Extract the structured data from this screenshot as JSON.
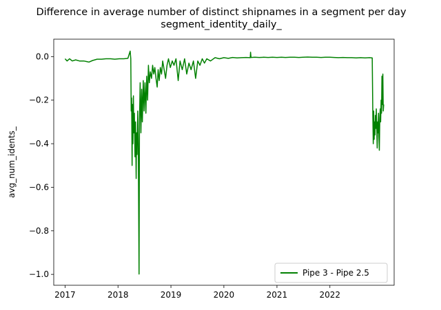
{
  "chart_data": {
    "type": "line",
    "title": [
      "Difference in average number of distinct shipnames in a segment per day",
      "segment_identity_daily_"
    ],
    "xlabel": "",
    "ylabel": "avg_num_idents_",
    "x_ticks": [
      "2017",
      "2018",
      "2019",
      "2020",
      "2021",
      "2022"
    ],
    "y_ticks": [
      "0.0",
      "−0.2",
      "−0.4",
      "−0.6",
      "−0.8",
      "−1.0"
    ],
    "xlim": [
      "2016-10-15",
      "2023-03-20"
    ],
    "ylim": [
      -1.05,
      0.08
    ],
    "grid": false,
    "legend_position": "lower-right",
    "series": [
      {
        "name": "Pipe 3 - Pipe 2.5",
        "color": "#008000",
        "points": [
          [
            "2017-01-01",
            -0.01
          ],
          [
            "2017-01-15",
            -0.02
          ],
          [
            "2017-02-01",
            -0.01
          ],
          [
            "2017-02-20",
            -0.02
          ],
          [
            "2017-03-15",
            -0.015
          ],
          [
            "2017-04-10",
            -0.02
          ],
          [
            "2017-05-10",
            -0.02
          ],
          [
            "2017-06-15",
            -0.025
          ],
          [
            "2017-07-10",
            -0.018
          ],
          [
            "2017-08-10",
            -0.012
          ],
          [
            "2017-09-10",
            -0.012
          ],
          [
            "2017-10-10",
            -0.01
          ],
          [
            "2017-11-10",
            -0.01
          ],
          [
            "2017-12-10",
            -0.012
          ],
          [
            "2018-01-10",
            -0.01
          ],
          [
            "2018-02-10",
            -0.01
          ],
          [
            "2018-03-10",
            -0.008
          ],
          [
            "2018-03-26",
            0.025
          ],
          [
            "2018-03-30",
            -0.01
          ],
          [
            "2018-04-02",
            -0.25
          ],
          [
            "2018-04-05",
            -0.19
          ],
          [
            "2018-04-08",
            -0.5
          ],
          [
            "2018-04-11",
            -0.22
          ],
          [
            "2018-04-14",
            -0.4
          ],
          [
            "2018-04-17",
            -0.18
          ],
          [
            "2018-04-20",
            -0.35
          ],
          [
            "2018-04-24",
            -0.26
          ],
          [
            "2018-04-28",
            -0.46
          ],
          [
            "2018-05-02",
            -0.3
          ],
          [
            "2018-05-06",
            -0.56
          ],
          [
            "2018-05-09",
            -0.35
          ],
          [
            "2018-05-13",
            -0.45
          ],
          [
            "2018-05-17",
            -0.25
          ],
          [
            "2018-05-21",
            -0.4
          ],
          [
            "2018-05-26",
            -0.999
          ],
          [
            "2018-05-29",
            -0.3
          ],
          [
            "2018-06-03",
            -0.12
          ],
          [
            "2018-06-08",
            -0.35
          ],
          [
            "2018-06-13",
            -0.15
          ],
          [
            "2018-06-18",
            -0.3
          ],
          [
            "2018-06-24",
            -0.11
          ],
          [
            "2018-06-30",
            -0.25
          ],
          [
            "2018-07-06",
            -0.12
          ],
          [
            "2018-07-12",
            -0.26
          ],
          [
            "2018-07-18",
            -0.09
          ],
          [
            "2018-07-24",
            -0.2
          ],
          [
            "2018-07-30",
            -0.04
          ],
          [
            "2018-08-05",
            -0.12
          ],
          [
            "2018-08-12",
            -0.07
          ],
          [
            "2018-08-20",
            -0.1
          ],
          [
            "2018-08-28",
            -0.04
          ],
          [
            "2018-09-05",
            -0.08
          ],
          [
            "2018-09-12",
            -0.05
          ],
          [
            "2018-09-20",
            -0.1
          ],
          [
            "2018-09-28",
            -0.14
          ],
          [
            "2018-10-05",
            -0.06
          ],
          [
            "2018-10-12",
            -0.11
          ],
          [
            "2018-10-20",
            -0.05
          ],
          [
            "2018-10-28",
            -0.08
          ],
          [
            "2018-11-05",
            -0.02
          ],
          [
            "2018-11-15",
            -0.06
          ],
          [
            "2018-11-25",
            -0.1
          ],
          [
            "2018-12-05",
            -0.04
          ],
          [
            "2018-12-15",
            -0.01
          ],
          [
            "2018-12-28",
            -0.05
          ],
          [
            "2019-01-10",
            -0.02
          ],
          [
            "2019-01-22",
            -0.04
          ],
          [
            "2019-02-05",
            -0.01
          ],
          [
            "2019-02-20",
            -0.11
          ],
          [
            "2019-03-05",
            -0.02
          ],
          [
            "2019-03-20",
            -0.06
          ],
          [
            "2019-04-05",
            -0.01
          ],
          [
            "2019-04-20",
            -0.08
          ],
          [
            "2019-05-05",
            -0.03
          ],
          [
            "2019-05-20",
            -0.06
          ],
          [
            "2019-06-05",
            -0.02
          ],
          [
            "2019-06-20",
            -0.1
          ],
          [
            "2019-07-05",
            -0.02
          ],
          [
            "2019-07-20",
            -0.04
          ],
          [
            "2019-08-05",
            -0.01
          ],
          [
            "2019-08-20",
            -0.03
          ],
          [
            "2019-09-05",
            -0.01
          ],
          [
            "2019-10-01",
            -0.02
          ],
          [
            "2019-11-01",
            -0.005
          ],
          [
            "2019-12-01",
            -0.01
          ],
          [
            "2020-01-01",
            -0.005
          ],
          [
            "2020-02-01",
            -0.008
          ],
          [
            "2020-03-01",
            -0.004
          ],
          [
            "2020-04-01",
            -0.006
          ],
          [
            "2020-05-01",
            -0.005
          ],
          [
            "2020-06-01",
            -0.004
          ],
          [
            "2020-07-01",
            -0.005
          ],
          [
            "2020-07-03",
            0.02
          ],
          [
            "2020-07-06",
            -0.004
          ],
          [
            "2020-08-01",
            -0.003
          ],
          [
            "2020-09-01",
            -0.004
          ],
          [
            "2020-10-01",
            -0.003
          ],
          [
            "2020-11-01",
            -0.004
          ],
          [
            "2020-12-01",
            -0.003
          ],
          [
            "2021-01-01",
            -0.004
          ],
          [
            "2021-02-01",
            -0.003
          ],
          [
            "2021-03-01",
            -0.004
          ],
          [
            "2021-04-01",
            -0.003
          ],
          [
            "2021-05-01",
            -0.003
          ],
          [
            "2021-06-01",
            -0.004
          ],
          [
            "2021-07-01",
            -0.003
          ],
          [
            "2021-08-01",
            -0.002
          ],
          [
            "2021-09-01",
            -0.003
          ],
          [
            "2021-10-01",
            -0.003
          ],
          [
            "2021-11-01",
            -0.004
          ],
          [
            "2021-12-01",
            -0.003
          ],
          [
            "2022-01-01",
            -0.003
          ],
          [
            "2022-02-01",
            -0.004
          ],
          [
            "2022-03-01",
            -0.005
          ],
          [
            "2022-04-01",
            -0.004
          ],
          [
            "2022-05-01",
            -0.005
          ],
          [
            "2022-06-01",
            -0.005
          ],
          [
            "2022-07-01",
            -0.006
          ],
          [
            "2022-08-01",
            -0.005
          ],
          [
            "2022-09-01",
            -0.006
          ],
          [
            "2022-10-01",
            -0.005
          ],
          [
            "2022-10-20",
            -0.006
          ],
          [
            "2022-10-24",
            -0.28
          ],
          [
            "2022-10-27",
            -0.4
          ],
          [
            "2022-10-30",
            -0.25
          ],
          [
            "2022-11-02",
            -0.38
          ],
          [
            "2022-11-05",
            -0.3
          ],
          [
            "2022-11-08",
            -0.36
          ],
          [
            "2022-11-11",
            -0.27
          ],
          [
            "2022-11-14",
            -0.33
          ],
          [
            "2022-11-17",
            -0.24
          ],
          [
            "2022-11-20",
            -0.32
          ],
          [
            "2022-11-23",
            -0.42
          ],
          [
            "2022-11-26",
            -0.3
          ],
          [
            "2022-11-29",
            -0.35
          ],
          [
            "2022-12-02",
            -0.26
          ],
          [
            "2022-12-05",
            -0.37
          ],
          [
            "2022-12-08",
            -0.43
          ],
          [
            "2022-12-11",
            -0.28
          ],
          [
            "2022-12-14",
            -0.24
          ],
          [
            "2022-12-17",
            -0.3
          ],
          [
            "2022-12-20",
            -0.2
          ],
          [
            "2022-12-23",
            -0.26
          ],
          [
            "2022-12-26",
            -0.09
          ],
          [
            "2022-12-29",
            -0.22
          ],
          [
            "2023-01-01",
            -0.08
          ],
          [
            "2023-01-04",
            -0.25
          ],
          [
            "2023-01-07",
            -0.22
          ]
        ]
      }
    ]
  }
}
